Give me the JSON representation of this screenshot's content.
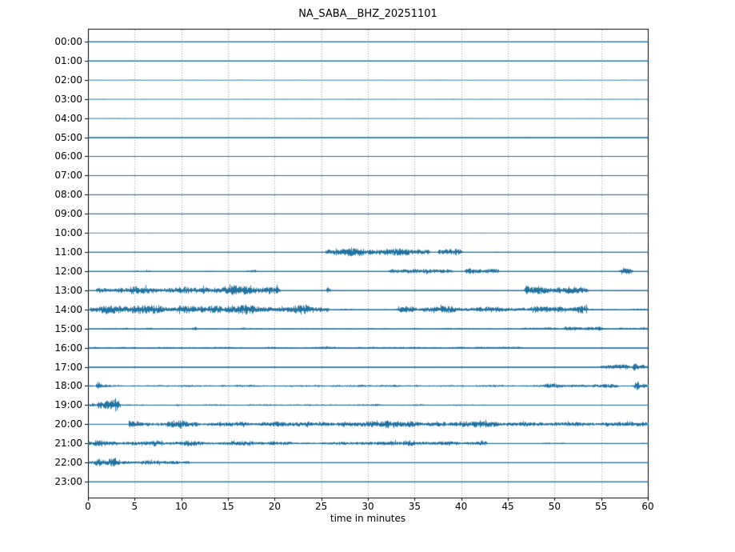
{
  "figure": {
    "title": "NA_SABA__BHZ_20251101",
    "xlabel": "time in minutes"
  },
  "colors": {
    "trace": "#1a6f9e",
    "frame": "#000000",
    "grid": "#9a9a9a",
    "background": "#ffffff"
  },
  "chart_data": {
    "type": "line",
    "subtype": "seismogram-helicorder-dayplot",
    "title": "NA_SABA__BHZ_20251101",
    "xlabel": "time in minutes",
    "x_range": [
      0,
      60
    ],
    "x_ticks": [
      0,
      5,
      10,
      15,
      20,
      25,
      30,
      35,
      40,
      45,
      50,
      55,
      60
    ],
    "grid": "vertical-dotted-every-5-min",
    "legend": "none",
    "row_labels": [
      "00:00",
      "01:00",
      "02:00",
      "03:00",
      "04:00",
      "05:00",
      "06:00",
      "07:00",
      "08:00",
      "09:00",
      "10:00",
      "11:00",
      "12:00",
      "13:00",
      "14:00",
      "15:00",
      "16:00",
      "17:00",
      "18:00",
      "19:00",
      "20:00",
      "21:00",
      "22:00",
      "23:00"
    ],
    "amplitude_note": "base = [start_min, end_min, background_amplitude_px]; bursts = [start_min, end_min, peak_amplitude_px]",
    "rows": [
      {
        "label": "00:00",
        "base": [
          [
            0,
            60,
            0.35
          ]
        ],
        "bursts": []
      },
      {
        "label": "01:00",
        "base": [
          [
            0,
            60,
            0.35
          ]
        ],
        "bursts": []
      },
      {
        "label": "02:00",
        "base": [
          [
            0,
            60,
            0.8
          ]
        ],
        "bursts": [],
        "fuzzy": true
      },
      {
        "label": "03:00",
        "base": [
          [
            0,
            60,
            0.8
          ]
        ],
        "bursts": [],
        "fuzzy": true
      },
      {
        "label": "04:00",
        "base": [
          [
            0,
            60,
            0.8
          ]
        ],
        "bursts": [],
        "fuzzy": true
      },
      {
        "label": "05:00",
        "base": [
          [
            0,
            60,
            0.45
          ]
        ],
        "bursts": []
      },
      {
        "label": "06:00",
        "base": [
          [
            0,
            60,
            0.45
          ]
        ],
        "bursts": []
      },
      {
        "label": "07:00",
        "base": [
          [
            0,
            60,
            0.35
          ]
        ],
        "bursts": []
      },
      {
        "label": "08:00",
        "base": [
          [
            0,
            60,
            0.35
          ]
        ],
        "bursts": []
      },
      {
        "label": "09:00",
        "base": [
          [
            0,
            60,
            0.35
          ]
        ],
        "bursts": []
      },
      {
        "label": "10:00",
        "base": [
          [
            0,
            60,
            0.7
          ]
        ],
        "bursts": [],
        "fuzzy": true
      },
      {
        "label": "11:00",
        "base": [
          [
            0,
            60,
            0.4
          ]
        ],
        "bursts": [
          [
            25.4,
            36.6,
            5.5
          ],
          [
            37.4,
            40.2,
            4.5
          ],
          [
            43.2,
            44.3,
            0.9
          ]
        ]
      },
      {
        "label": "12:00",
        "base": [
          [
            0,
            60,
            0.45
          ]
        ],
        "bursts": [
          [
            5.0,
            5.4,
            2.2
          ],
          [
            6.0,
            6.7,
            3.2
          ],
          [
            12.4,
            13.6,
            0.9
          ],
          [
            16.8,
            18.1,
            2.8
          ],
          [
            32.2,
            39.2,
            5.0
          ],
          [
            40.3,
            44.1,
            4.6
          ],
          [
            56.9,
            58.4,
            4.6
          ]
        ]
      },
      {
        "label": "13:00",
        "base": [
          [
            0,
            60,
            0.55
          ]
        ],
        "bursts": [
          [
            0.8,
            20.6,
            6.5
          ],
          [
            25.4,
            26.0,
            4.5
          ],
          [
            46.7,
            53.7,
            6.5
          ]
        ]
      },
      {
        "label": "14:00",
        "base": [
          [
            0,
            60,
            0.9
          ]
        ],
        "bursts": [
          [
            0.2,
            25.4,
            6.5
          ],
          [
            25.4,
            25.8,
            8.5
          ],
          [
            33.0,
            47.0,
            4.5
          ],
          [
            47.0,
            53.6,
            6.0
          ],
          [
            53.6,
            60,
            1.2
          ]
        ]
      },
      {
        "label": "15:00",
        "base": [
          [
            0,
            60,
            0.8
          ]
        ],
        "bursts": [
          [
            3.7,
            4.3,
            2.5
          ],
          [
            6.2,
            6.9,
            3.5
          ],
          [
            11.1,
            11.7,
            4.5
          ],
          [
            16.3,
            16.9,
            2.8
          ],
          [
            20.8,
            22.0,
            1.6
          ],
          [
            31.4,
            32.1,
            2.6
          ],
          [
            38.0,
            39.0,
            1.5
          ],
          [
            46.3,
            50.3,
            2.6
          ],
          [
            50.9,
            55.2,
            3.2
          ],
          [
            56.8,
            60,
            2.0
          ]
        ]
      },
      {
        "label": "16:00",
        "base": [
          [
            0,
            46.6,
            1.3
          ],
          [
            46.6,
            60,
            0.35
          ]
        ],
        "bursts": [
          [
            11.8,
            12.4,
            2.2
          ],
          [
            25.2,
            26.0,
            2.0
          ],
          [
            28.8,
            29.6,
            1.8
          ],
          [
            33.2,
            34.0,
            2.0
          ],
          [
            41.3,
            46.3,
            2.4
          ],
          [
            45.8,
            46.4,
            3.0
          ]
        ]
      },
      {
        "label": "17:00",
        "base": [
          [
            0,
            60,
            0.45
          ]
        ],
        "bursts": [
          [
            54.8,
            58.1,
            3.8
          ],
          [
            58.3,
            59.0,
            8.5
          ],
          [
            59.0,
            60,
            3.0
          ]
        ]
      },
      {
        "label": "18:00",
        "base": [
          [
            0,
            60,
            1.7
          ]
        ],
        "bursts": [
          [
            0.8,
            1.4,
            6.5
          ],
          [
            3.0,
            3.4,
            3.0
          ],
          [
            14.0,
            15.0,
            2.4
          ],
          [
            24.0,
            25.0,
            2.4
          ],
          [
            35.1,
            35.5,
            6.5
          ],
          [
            41.5,
            42.0,
            3.0
          ],
          [
            48.8,
            57.0,
            3.2
          ],
          [
            58.4,
            59.1,
            7.5
          ],
          [
            59.1,
            60,
            3.5
          ]
        ]
      },
      {
        "label": "19:00",
        "base": [
          [
            0,
            42.8,
            1.2
          ],
          [
            42.8,
            60,
            0.4
          ]
        ],
        "bursts": [
          [
            0,
            0.9,
            3.5
          ],
          [
            0.9,
            3.5,
            7.0
          ],
          [
            2.7,
            3.1,
            11.0
          ],
          [
            5.5,
            6.1,
            2.0
          ],
          [
            9.3,
            10.0,
            2.0
          ],
          [
            17.0,
            18.0,
            1.8
          ],
          [
            23.0,
            24.0,
            1.8
          ],
          [
            30.0,
            31.5,
            1.8
          ],
          [
            35.0,
            36.0,
            1.8
          ]
        ]
      },
      {
        "label": "20:00",
        "base": [
          [
            0,
            4.3,
            0.45
          ],
          [
            4.3,
            60,
            4.2
          ]
        ],
        "bursts": [
          [
            8,
            12,
            5.5
          ],
          [
            16,
            17,
            6.0
          ],
          [
            22.5,
            24,
            6.5
          ],
          [
            29,
            35,
            5.5
          ],
          [
            37,
            38.5,
            6.0
          ],
          [
            43,
            44,
            5.5
          ],
          [
            46,
            47,
            5.0
          ],
          [
            52,
            53,
            5.0
          ],
          [
            57.5,
            60,
            5.5
          ]
        ]
      },
      {
        "label": "21:00",
        "base": [
          [
            0,
            22,
            3.2
          ],
          [
            22,
            25,
            1.6
          ],
          [
            25,
            42.7,
            3.0
          ],
          [
            42.7,
            60,
            0.45
          ]
        ],
        "bursts": [
          [
            0.5,
            3.2,
            5.0
          ],
          [
            2.8,
            3.1,
            8.0
          ],
          [
            4.5,
            12,
            4.5
          ],
          [
            17,
            21.5,
            4.0
          ],
          [
            25.5,
            27.5,
            3.5
          ],
          [
            33.5,
            35.5,
            5.0
          ],
          [
            48.6,
            51.2,
            1.8
          ],
          [
            58.9,
            60,
            1.2
          ]
        ]
      },
      {
        "label": "22:00",
        "base": [
          [
            0,
            10.8,
            2.8
          ],
          [
            10.8,
            60,
            0.4
          ]
        ],
        "bursts": [
          [
            0.6,
            3.4,
            5.5
          ],
          [
            2.8,
            3.05,
            9.0
          ],
          [
            5.5,
            8.0,
            3.5
          ]
        ]
      },
      {
        "label": "23:00",
        "base": [
          [
            0,
            60,
            0.4
          ]
        ],
        "bursts": []
      }
    ]
  }
}
